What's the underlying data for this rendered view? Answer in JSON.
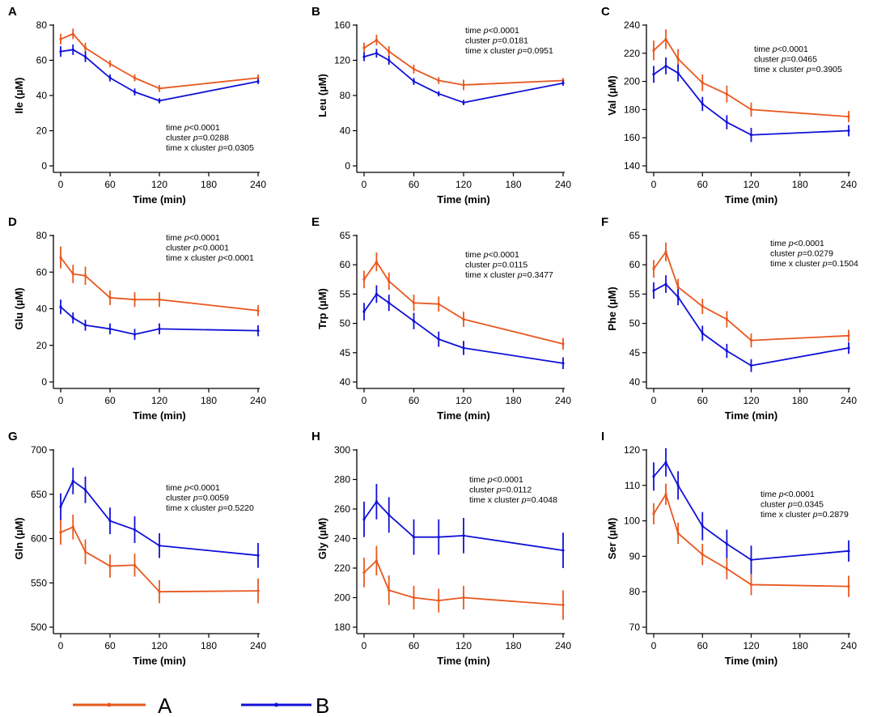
{
  "colors": {
    "A": "#e8581f",
    "B": "#1010d8",
    "axis": "#000000"
  },
  "legend": [
    {
      "key": "A",
      "label": "A"
    },
    {
      "key": "B",
      "label": "B"
    }
  ],
  "chart_data": [
    {
      "panel": "A",
      "type": "line",
      "ylabel": "Ile (µM)",
      "xlabel": "Time (min)",
      "ylim": [
        0,
        80
      ],
      "yticks": [
        0,
        20,
        40,
        60,
        80
      ],
      "xlim": [
        0,
        240
      ],
      "xticks": [
        0,
        60,
        120,
        180,
        240
      ],
      "x": [
        0,
        15,
        30,
        60,
        90,
        120,
        240
      ],
      "series": [
        {
          "name": "A",
          "values": [
            72,
            75,
            67,
            58,
            50,
            44,
            50
          ],
          "errors": [
            3,
            3,
            3,
            2,
            2,
            2,
            2
          ]
        },
        {
          "name": "B",
          "values": [
            65,
            66,
            62,
            50,
            42,
            37,
            48
          ],
          "errors": [
            3,
            3,
            3,
            2,
            2,
            1.5,
            1.5
          ]
        }
      ],
      "stats": [
        "time p<0.0001",
        "cluster p=0.0288",
        "time x cluster p=0.0305"
      ]
    },
    {
      "panel": "B",
      "type": "line",
      "ylabel": "Leu (µM)",
      "xlabel": "Time (min)",
      "ylim": [
        0,
        160
      ],
      "yticks": [
        0,
        40,
        80,
        120,
        160
      ],
      "xlim": [
        0,
        240
      ],
      "xticks": [
        0,
        60,
        120,
        180,
        240
      ],
      "x": [
        0,
        15,
        30,
        60,
        90,
        120,
        240
      ],
      "series": [
        {
          "name": "A",
          "values": [
            134,
            143,
            130,
            110,
            97,
            92,
            97
          ],
          "errors": [
            6,
            6,
            6,
            5,
            4,
            6,
            3
          ]
        },
        {
          "name": "B",
          "values": [
            124,
            128,
            120,
            96,
            82,
            72,
            94
          ],
          "errors": [
            5,
            5,
            5,
            4,
            3,
            3,
            3
          ]
        }
      ],
      "stats": [
        "time p<0.0001",
        "cluster p=0.0181",
        "time x cluster p=0.0951"
      ]
    },
    {
      "panel": "C",
      "type": "line",
      "ylabel": "Val (µM)",
      "xlabel": "Time (min)",
      "ylim": [
        140,
        240
      ],
      "yticks": [
        140,
        160,
        180,
        200,
        220,
        240
      ],
      "xlim": [
        0,
        240
      ],
      "xticks": [
        0,
        60,
        120,
        180,
        240
      ],
      "x": [
        0,
        15,
        30,
        60,
        90,
        120,
        240
      ],
      "series": [
        {
          "name": "A",
          "values": [
            222,
            230,
            216,
            199,
            191,
            180,
            175
          ],
          "errors": [
            7,
            7,
            7,
            6,
            6,
            5,
            4
          ]
        },
        {
          "name": "B",
          "values": [
            205,
            211,
            206,
            184,
            171,
            162,
            165
          ],
          "errors": [
            6,
            6,
            6,
            5,
            5,
            5,
            4
          ]
        }
      ],
      "stats": [
        "time p<0.0001",
        "cluster p=0.0465",
        "time x cluster p=0.3905"
      ]
    },
    {
      "panel": "D",
      "type": "line",
      "ylabel": "Glu (µM)",
      "xlabel": "Time (min)",
      "ylim": [
        0,
        80
      ],
      "yticks": [
        0,
        20,
        40,
        60,
        80
      ],
      "xlim": [
        0,
        240
      ],
      "xticks": [
        0,
        60,
        120,
        180,
        240
      ],
      "x": [
        0,
        15,
        30,
        60,
        90,
        120,
        240
      ],
      "series": [
        {
          "name": "A",
          "values": [
            68,
            59,
            58,
            46,
            45,
            45,
            39
          ],
          "errors": [
            6,
            5,
            5,
            4,
            4,
            4,
            3
          ]
        },
        {
          "name": "B",
          "values": [
            41,
            35,
            31,
            29,
            26,
            29,
            28
          ],
          "errors": [
            4,
            3,
            3,
            3,
            3,
            3,
            3
          ]
        }
      ],
      "stats": [
        "time p<0.0001",
        "cluster p<0.0001",
        "time x cluster p<0.0001"
      ]
    },
    {
      "panel": "E",
      "type": "line",
      "ylabel": "Trp (µM)",
      "xlabel": "Time (min)",
      "ylim": [
        40,
        65
      ],
      "yticks": [
        40,
        45,
        50,
        55,
        60,
        65
      ],
      "xlim": [
        0,
        240
      ],
      "xticks": [
        0,
        60,
        120,
        180,
        240
      ],
      "x": [
        0,
        15,
        30,
        60,
        90,
        120,
        240
      ],
      "series": [
        {
          "name": "A",
          "values": [
            57.5,
            60.5,
            57.2,
            53.5,
            53.3,
            50.7,
            46.5
          ],
          "errors": [
            1.5,
            1.6,
            1.5,
            1.4,
            1.3,
            1.3,
            1.0
          ]
        },
        {
          "name": "B",
          "values": [
            52,
            55,
            53.5,
            50.4,
            47.3,
            45.8,
            43.2
          ],
          "errors": [
            1.5,
            1.5,
            1.4,
            1.4,
            1.3,
            1.2,
            1.0
          ]
        }
      ],
      "stats": [
        "time p<0.0001",
        "cluster p=0.0115",
        "time x cluster p=0.3477"
      ]
    },
    {
      "panel": "F",
      "type": "line",
      "ylabel": "Phe (µM)",
      "xlabel": "Time (min)",
      "ylim": [
        40,
        65
      ],
      "yticks": [
        40,
        45,
        50,
        55,
        60,
        65
      ],
      "xlim": [
        0,
        240
      ],
      "xticks": [
        0,
        60,
        120,
        180,
        240
      ],
      "x": [
        0,
        15,
        30,
        60,
        90,
        120,
        240
      ],
      "series": [
        {
          "name": "A",
          "values": [
            59.3,
            62.2,
            56.2,
            52.9,
            50.7,
            47.1,
            47.9
          ],
          "errors": [
            1.5,
            1.6,
            1.4,
            1.3,
            1.4,
            1.2,
            1.0
          ]
        },
        {
          "name": "B",
          "values": [
            55.6,
            56.7,
            54.5,
            48.3,
            45.3,
            42.8,
            45.8
          ],
          "errors": [
            1.4,
            1.5,
            1.4,
            1.3,
            1.2,
            1.1,
            1.0
          ]
        }
      ],
      "stats": [
        "time p<0.0001",
        "cluster p=0.0279",
        "time x cluster p=0.1504"
      ]
    },
    {
      "panel": "G",
      "type": "line",
      "ylabel": "Gln (µM)",
      "xlabel": "Time (min)",
      "ylim": [
        500,
        700
      ],
      "yticks": [
        500,
        550,
        600,
        650,
        700
      ],
      "xlim": [
        0,
        240
      ],
      "xticks": [
        0,
        60,
        120,
        180,
        240
      ],
      "x": [
        0,
        15,
        30,
        60,
        90,
        120,
        240
      ],
      "series": [
        {
          "name": "A",
          "values": [
            607,
            613,
            585,
            569,
            570,
            540,
            541
          ],
          "errors": [
            14,
            14,
            14,
            13,
            13,
            13,
            14
          ]
        },
        {
          "name": "B",
          "values": [
            636,
            665,
            655,
            620,
            610,
            592,
            581
          ],
          "errors": [
            15,
            15,
            15,
            15,
            15,
            14,
            14
          ]
        }
      ],
      "stats": [
        "time p<0.0001",
        "cluster p=0.0059",
        "time x cluster p=0.5220"
      ]
    },
    {
      "panel": "H",
      "type": "line",
      "ylabel": "Gly (µM)",
      "xlabel": "Time (min)",
      "ylim": [
        180,
        300
      ],
      "yticks": [
        180,
        200,
        220,
        240,
        260,
        280,
        300
      ],
      "xlim": [
        0,
        240
      ],
      "xticks": [
        0,
        60,
        120,
        180,
        240
      ],
      "x": [
        0,
        15,
        30,
        60,
        90,
        120,
        240
      ],
      "series": [
        {
          "name": "A",
          "values": [
            217,
            225,
            205,
            200,
            198,
            200,
            195
          ],
          "errors": [
            10,
            10,
            10,
            8,
            8,
            8,
            10
          ]
        },
        {
          "name": "B",
          "values": [
            253,
            265,
            256,
            241,
            241,
            242,
            232
          ],
          "errors": [
            12,
            12,
            12,
            12,
            12,
            12,
            12
          ]
        }
      ],
      "stats": [
        "time p<0.0001",
        "cluster p=0.0112",
        "time x cluster p=0.4048"
      ]
    },
    {
      "panel": "I",
      "type": "line",
      "ylabel": "Ser (µM)",
      "xlabel": "Time (min)",
      "ylim": [
        70,
        120
      ],
      "yticks": [
        70,
        80,
        90,
        100,
        110,
        120
      ],
      "xlim": [
        0,
        240
      ],
      "xticks": [
        0,
        60,
        120,
        180,
        240
      ],
      "x": [
        0,
        15,
        30,
        60,
        90,
        120,
        240
      ],
      "series": [
        {
          "name": "A",
          "values": [
            102,
            107.5,
            96.5,
            90.5,
            86.5,
            82,
            81.5
          ],
          "errors": [
            3,
            3,
            3,
            3,
            3,
            3,
            3
          ]
        },
        {
          "name": "B",
          "values": [
            112.5,
            116.5,
            110,
            98.5,
            93.5,
            89,
            91.5
          ],
          "errors": [
            4,
            4,
            4,
            4,
            4,
            4,
            3
          ]
        }
      ],
      "stats": [
        "time p<0.0001",
        "cluster p=0.0345",
        "time x cluster p=0.2879"
      ]
    }
  ]
}
